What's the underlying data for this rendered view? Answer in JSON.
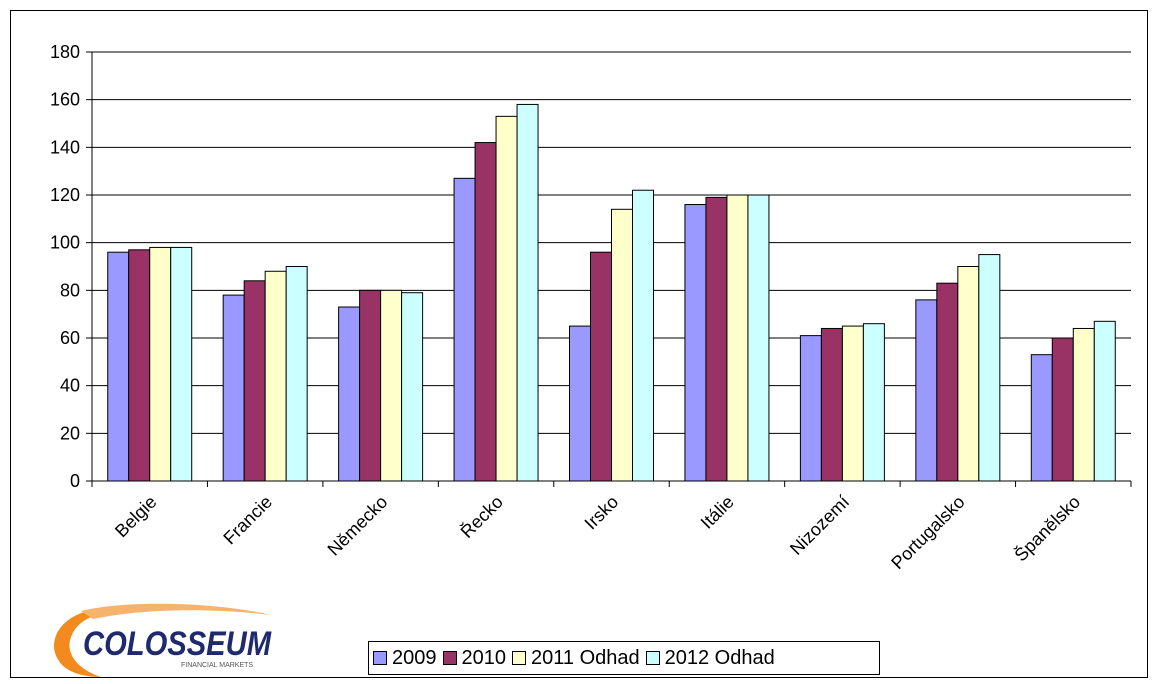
{
  "chart_data": {
    "type": "bar",
    "categories": [
      "Belgie",
      "Francie",
      "Německo",
      "Řecko",
      "Irsko",
      "Itálie",
      "Nizozemí",
      "Portugalsko",
      "Španělsko"
    ],
    "series": [
      {
        "name": "2009",
        "color": "#9999ff",
        "values": [
          96,
          78,
          73,
          127,
          65,
          116,
          61,
          76,
          53
        ]
      },
      {
        "name": "2010",
        "color": "#993366",
        "values": [
          97,
          84,
          80,
          142,
          96,
          119,
          64,
          83,
          60
        ]
      },
      {
        "name": "2011 Odhad",
        "color": "#ffffcc",
        "values": [
          98,
          88,
          80,
          153,
          114,
          120,
          65,
          90,
          64
        ]
      },
      {
        "name": "2012 Odhad",
        "color": "#ccffff",
        "values": [
          98,
          90,
          79,
          158,
          122,
          120,
          66,
          95,
          67
        ]
      }
    ],
    "ylim": [
      0,
      180
    ],
    "yticks": [
      0,
      20,
      40,
      60,
      80,
      100,
      120,
      140,
      160,
      180
    ],
    "grid": true,
    "legend_position": "bottom"
  },
  "logo": {
    "text": "COLOSSEUM",
    "subtext": "FINANCIAL MARKETS",
    "colors": {
      "orange": "#f28a1e",
      "navy": "#1f2a6e"
    }
  }
}
